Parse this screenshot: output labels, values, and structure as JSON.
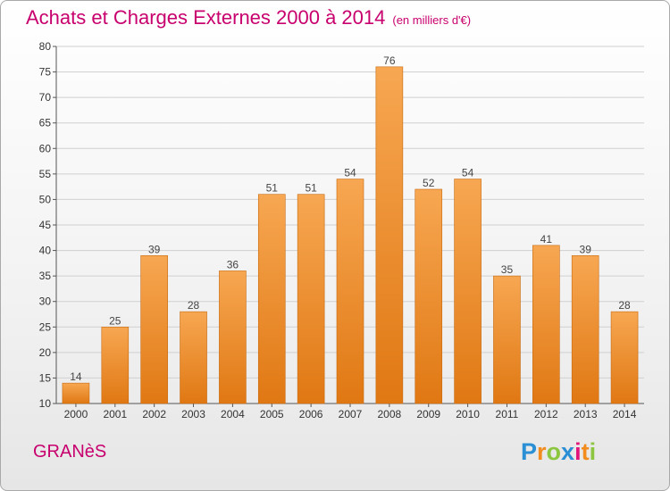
{
  "title": "Achats et Charges Externes 2000 à 2014",
  "unit": "(en milliers d'€)",
  "commune": "GRANèS",
  "logo": {
    "letters": [
      {
        "ch": "P",
        "color": "#2a8fd4"
      },
      {
        "ch": "r",
        "color": "#f28c1e"
      },
      {
        "ch": "o",
        "color": "#8cc63f"
      },
      {
        "ch": "x",
        "color": "#2a8fd4"
      },
      {
        "ch": "i",
        "color": "#e3157b"
      },
      {
        "ch": "t",
        "color": "#f28c1e"
      },
      {
        "ch": "i",
        "color": "#8cc63f"
      }
    ]
  },
  "colors": {
    "title": "#c8006e",
    "bar_top": "#f7a752",
    "bar_bottom": "#e07813",
    "bar_edge": "#c76a10",
    "grid": "#d0d0d0"
  },
  "chart_data": {
    "type": "bar",
    "categories": [
      "2000",
      "2001",
      "2002",
      "2003",
      "2004",
      "2005",
      "2006",
      "2007",
      "2008",
      "2009",
      "2010",
      "2011",
      "2012",
      "2013",
      "2014"
    ],
    "values": [
      14,
      25,
      39,
      28,
      36,
      51,
      51,
      54,
      76,
      52,
      54,
      35,
      41,
      39,
      28
    ],
    "ylim": [
      10,
      80
    ],
    "yticks": [
      10,
      15,
      20,
      25,
      30,
      35,
      40,
      45,
      50,
      55,
      60,
      65,
      70,
      75,
      80
    ],
    "grid": true,
    "data_labels": true
  }
}
